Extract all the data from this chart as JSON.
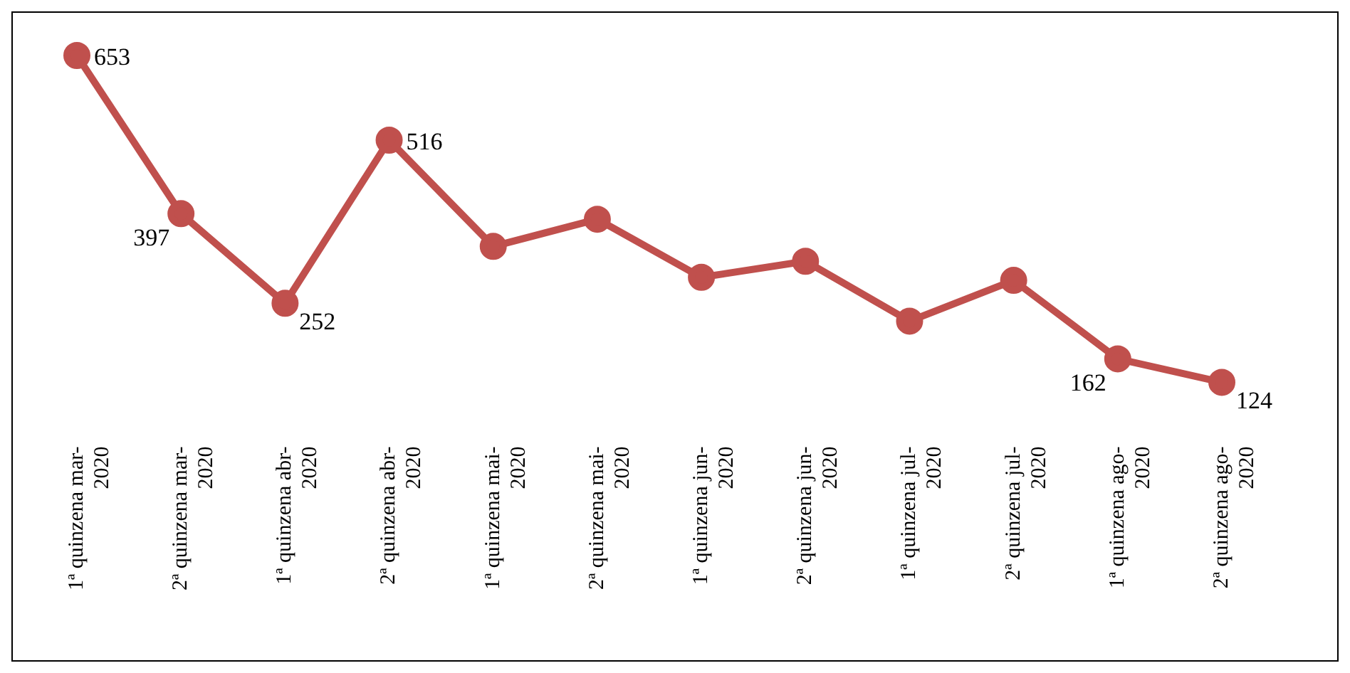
{
  "chart_data": {
    "type": "line",
    "categories": [
      "1ª quinzena mar-2020",
      "2ª quinzena mar-2020",
      "1ª quinzena abr-2020",
      "2ª quinzena abr-2020",
      "1ª quinzena mai-2020",
      "2ª quinzena mai-2020",
      "1ª quinzena jun-2020",
      "2ª quinzena jun-2020",
      "1ª quinzena jul-2020",
      "2ª quinzena jul-2020",
      "1ª quinzena ago-2020",
      "2ª quinzena ago-2020"
    ],
    "series": [
      {
        "color": "#c0504d",
        "values": [
          653,
          397,
          252,
          516,
          344,
          388,
          294,
          320,
          223,
          289,
          162,
          124
        ],
        "value_labels": [
          "653",
          "397",
          "252",
          "516",
          null,
          null,
          null,
          null,
          null,
          null,
          "162",
          "124"
        ]
      }
    ],
    "marker": "circle",
    "line_style": "solid",
    "grid": false,
    "legend": false
  }
}
